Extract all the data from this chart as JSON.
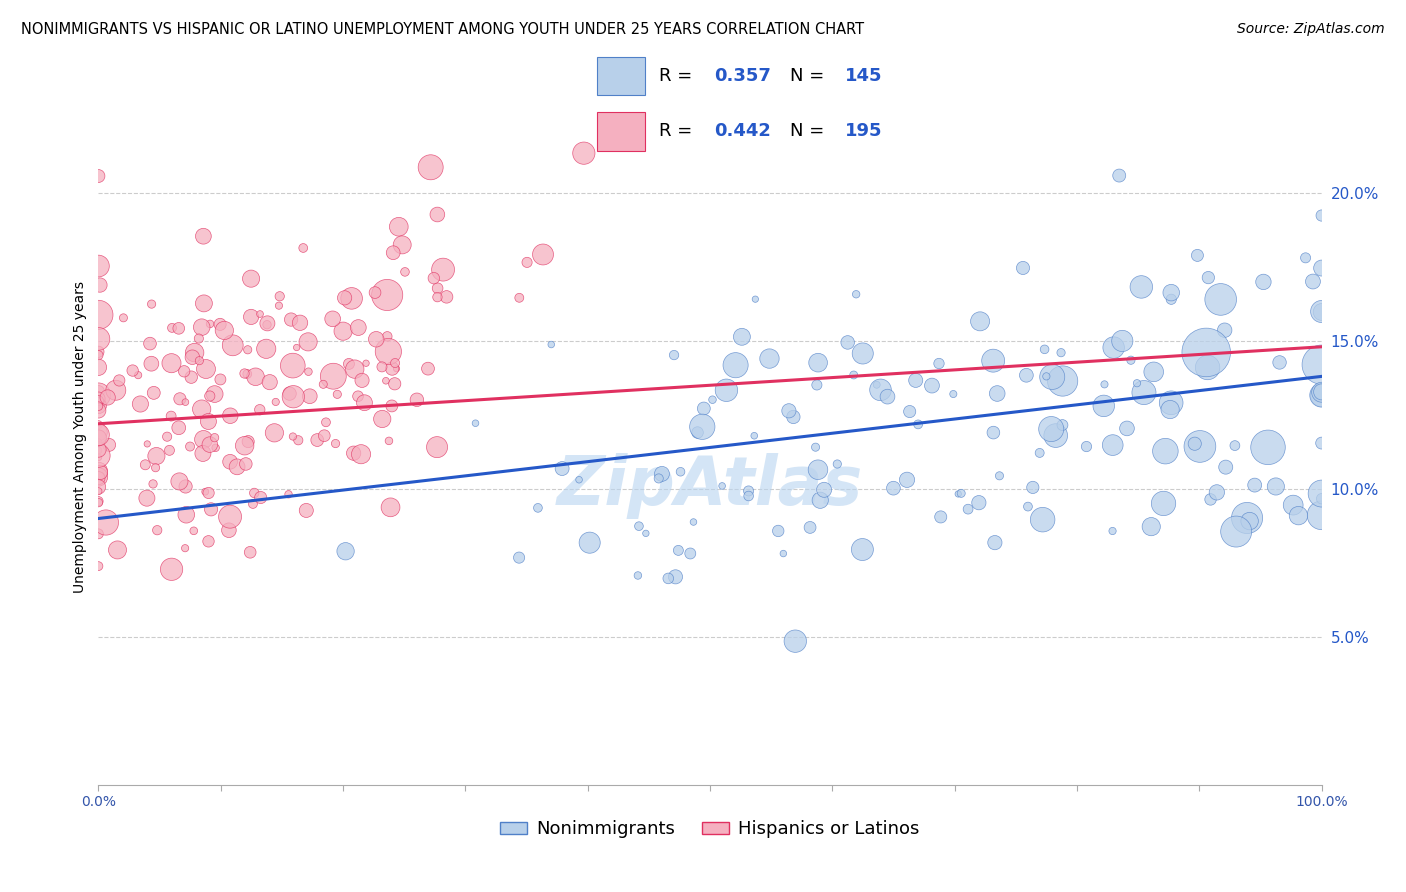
{
  "title": "NONIMMIGRANTS VS HISPANIC OR LATINO UNEMPLOYMENT AMONG YOUTH UNDER 25 YEARS CORRELATION CHART",
  "source": "Source: ZipAtlas.com",
  "ylabel": "Unemployment Among Youth under 25 years",
  "xlim": [
    0,
    1
  ],
  "ylim": [
    0.0,
    0.235
  ],
  "blue_R": 0.357,
  "blue_N": 145,
  "pink_R": 0.442,
  "pink_N": 195,
  "blue_color": "#b8d0ea",
  "pink_color": "#f5b0c0",
  "blue_edge_color": "#5080c8",
  "pink_edge_color": "#e03060",
  "blue_line_color": "#2558c8",
  "pink_line_color": "#e03060",
  "legend_label_blue": "Nonimmigrants",
  "legend_label_pink": "Hispanics or Latinos",
  "watermark": "ZipAtlas",
  "title_fontsize": 10.5,
  "axis_label_fontsize": 10,
  "tick_fontsize": 10,
  "legend_fontsize": 13,
  "source_fontsize": 10,
  "blue_line_y0": 0.09,
  "blue_line_y1": 0.138,
  "pink_line_y0": 0.122,
  "pink_line_y1": 0.148,
  "ytick_positions": [
    0.05,
    0.1,
    0.15,
    0.2
  ],
  "ytick_labels": [
    "5.0%",
    "10.0%",
    "15.0%",
    "20.0%"
  ]
}
